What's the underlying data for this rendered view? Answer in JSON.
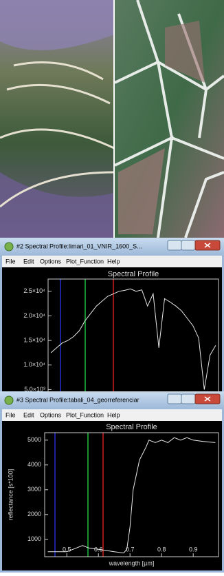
{
  "windows": [
    {
      "title": "#2 Spectral Profile:limari_01_VNIR_1600_S...",
      "menu": [
        "File",
        "Edit",
        "Options",
        "Plot_Function",
        "Help"
      ]
    },
    {
      "title": "#3 Spectral Profile:tabali_04_georreferenciar",
      "menu": [
        "File",
        "Edit",
        "Options",
        "Plot_Function",
        "Help"
      ]
    }
  ],
  "chart_data": [
    {
      "type": "line",
      "title": "Spectral Profile",
      "categories": [
        null,
        null,
        null,
        null,
        null,
        null,
        null,
        null,
        null,
        null,
        null,
        null,
        null,
        null,
        null,
        null,
        null,
        null,
        null,
        null,
        null,
        null,
        null,
        null,
        null,
        null,
        null,
        null,
        null,
        null
      ],
      "values": [
        12500,
        13500,
        14500,
        15000,
        15800,
        17000,
        19000,
        20500,
        22000,
        23000,
        24000,
        24500,
        25000,
        25200,
        25500,
        25000,
        25300,
        22000,
        24500,
        13500,
        23500,
        22800,
        22000,
        21000,
        19500,
        18000,
        15500,
        5000,
        12000,
        14000
      ],
      "color": "#e8e8e8",
      "ylim": [
        4500,
        27500
      ],
      "yticks": [
        {
          "value": 5000,
          "label": "5.0×10³"
        },
        {
          "value": 10000,
          "label": "1.0×10⁴"
        },
        {
          "value": 15000,
          "label": "1.5×10⁴"
        },
        {
          "value": 20000,
          "label": "2.0×10⁴"
        },
        {
          "value": 25000,
          "label": "2.5×10⁴"
        }
      ]
    },
    {
      "type": "line",
      "title": "Spectral Profile",
      "x_label": "wavelength [µm]",
      "y_label": "reflectance [s*100]",
      "x": [
        0.44,
        0.5,
        0.52,
        0.55,
        0.57,
        0.6,
        0.65,
        0.68,
        0.69,
        0.7,
        0.71,
        0.73,
        0.75,
        0.76,
        0.78,
        0.8,
        0.82,
        0.84,
        0.86,
        0.88,
        0.9,
        0.93,
        0.97
      ],
      "values": [
        500,
        500,
        600,
        750,
        650,
        600,
        500,
        450,
        600,
        1500,
        3000,
        4200,
        4700,
        5000,
        4900,
        5000,
        4900,
        5100,
        5000,
        5100,
        5000,
        4950,
        4900
      ],
      "color": "#e8e8e8",
      "xlim": [
        0.43,
        0.98
      ],
      "ylim": [
        300,
        5300
      ],
      "xticks": [
        0.5,
        0.6,
        0.7,
        0.8,
        0.9
      ],
      "yticks": [
        1000,
        2000,
        3000,
        4000,
        5000
      ]
    }
  ]
}
